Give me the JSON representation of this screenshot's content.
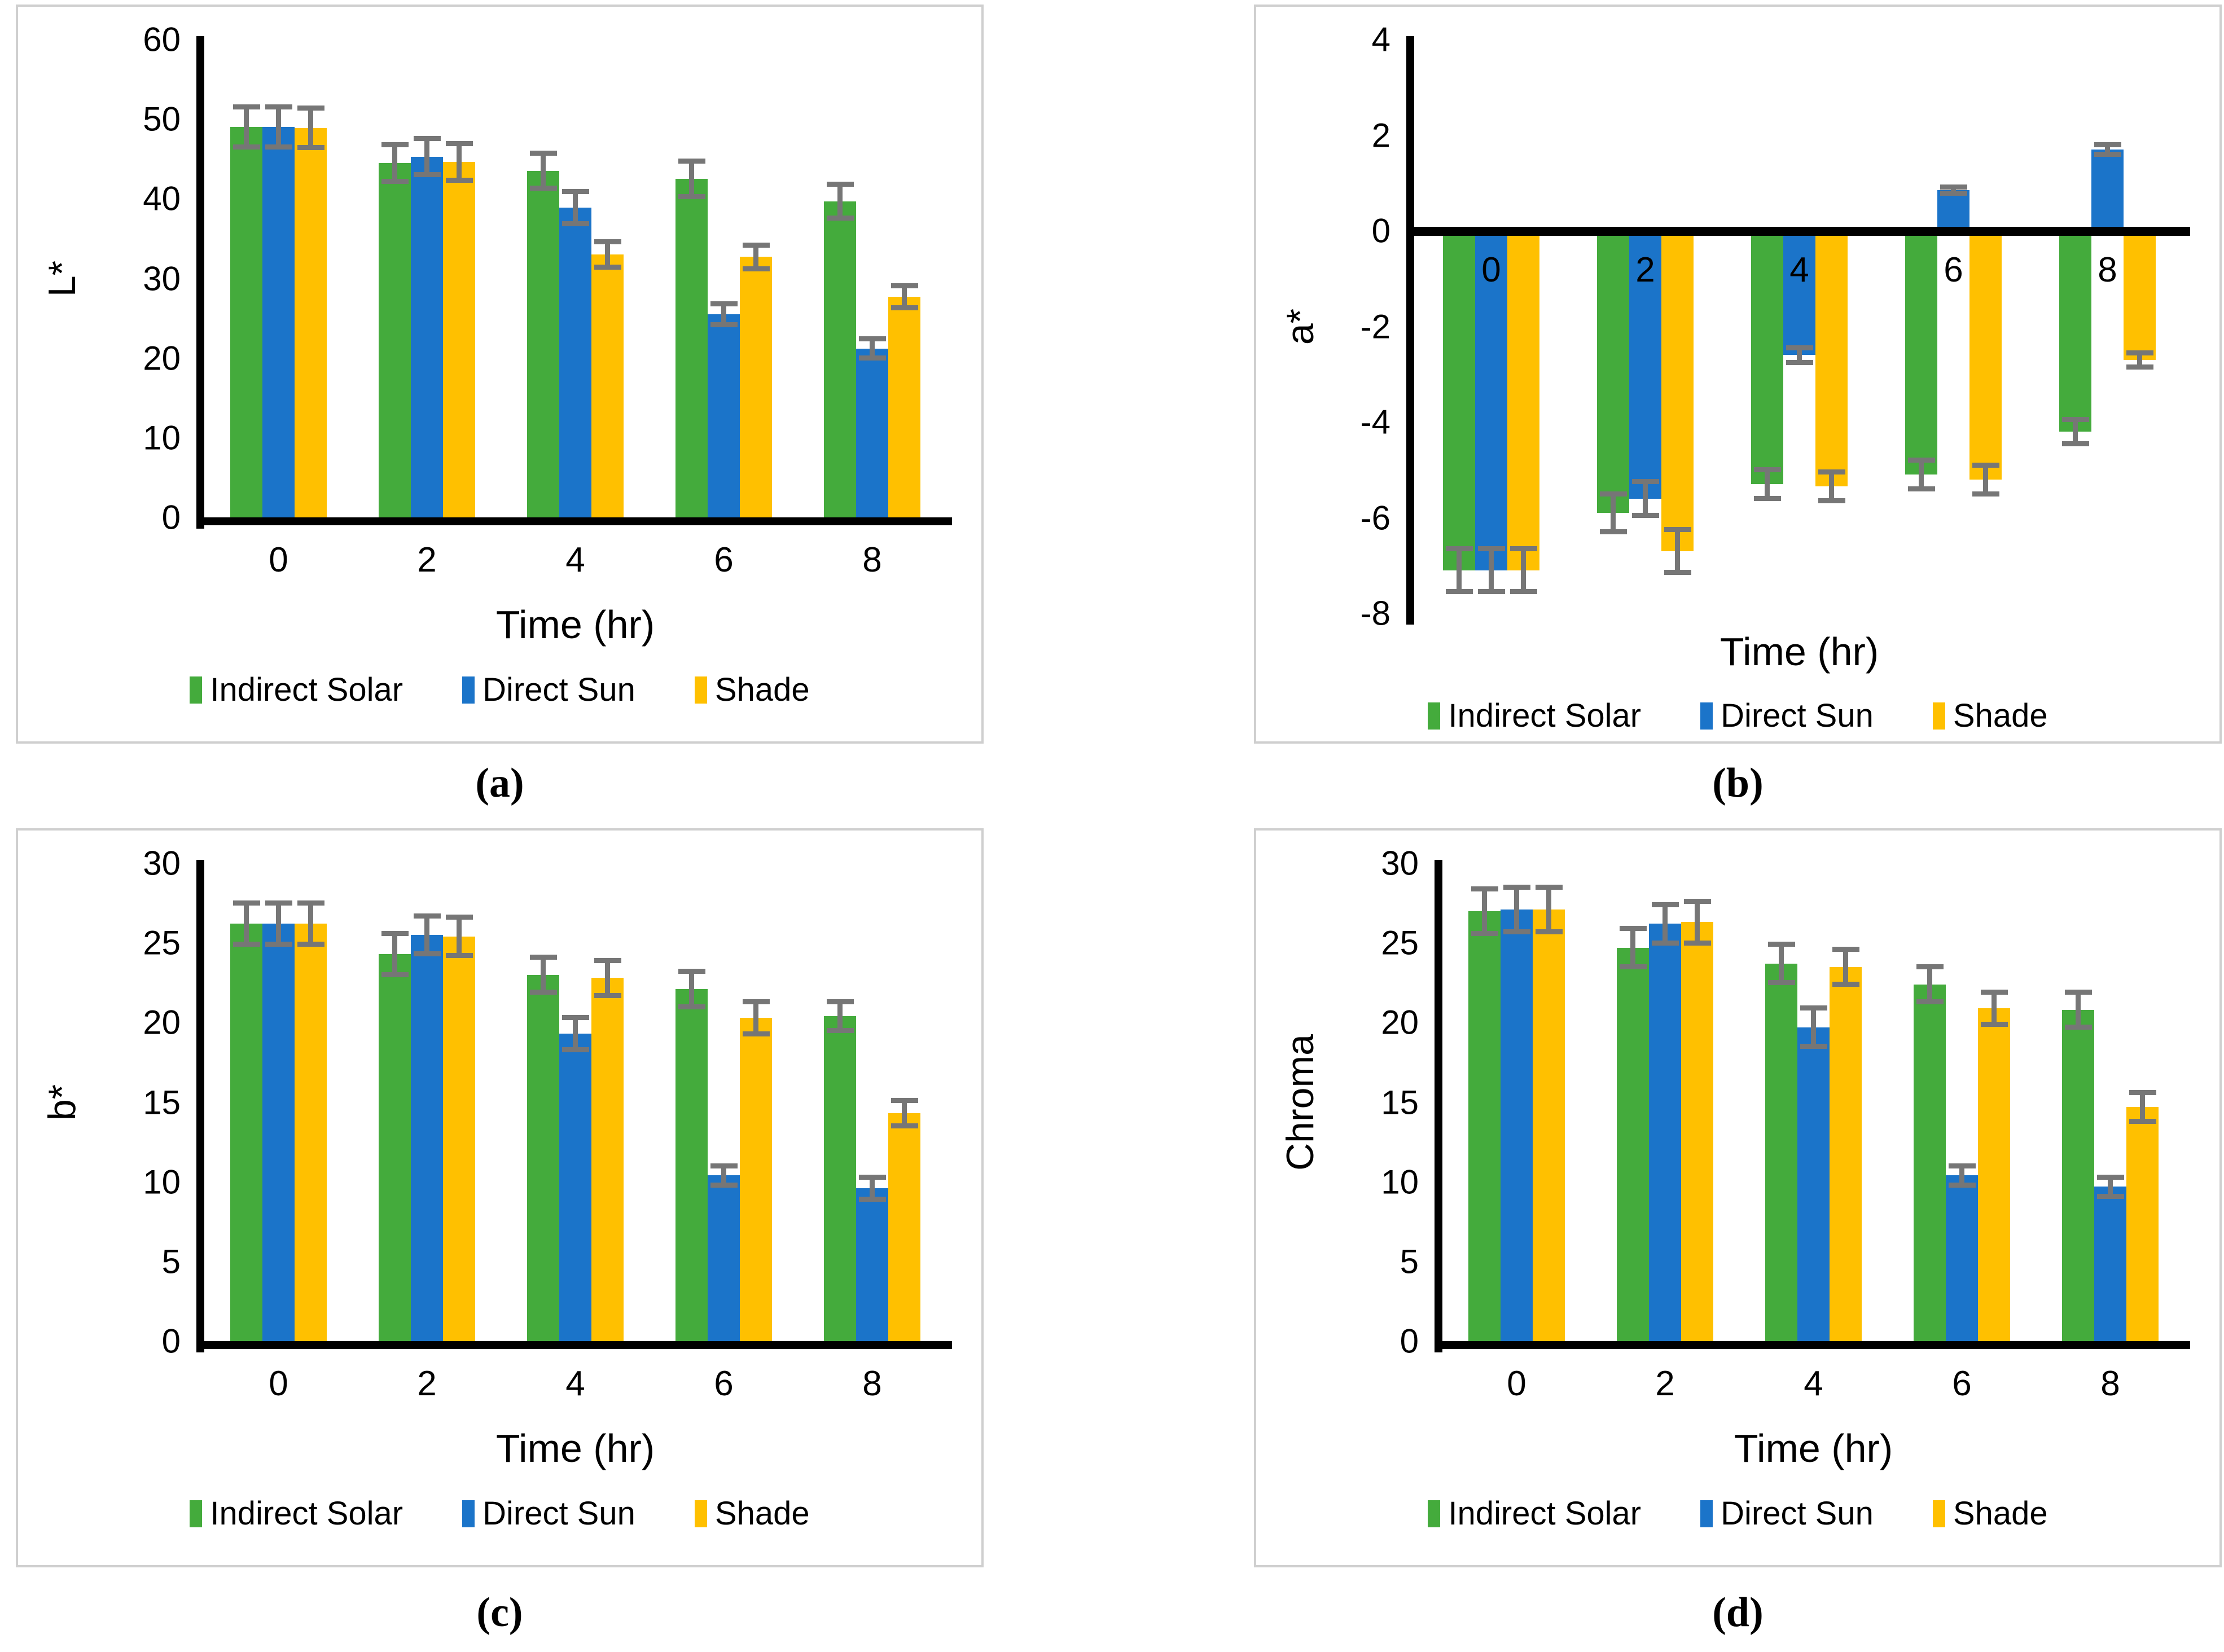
{
  "figure": {
    "description": "Four bar charts of color parameters over drying time",
    "colors": {
      "green": "#44ab3c",
      "blue": "#1b74c9",
      "yellow": "#ffc000",
      "error_gray": "#767676",
      "axis_black": "#000000",
      "panel_border": "#cfcfcf"
    }
  },
  "legend": {
    "items": [
      {
        "label": "Indirect Solar",
        "color": "green"
      },
      {
        "label": "Direct Sun",
        "color": "blue"
      },
      {
        "label": "Shade",
        "color": "yellow"
      }
    ]
  },
  "panels": [
    {
      "label": "(a)",
      "chart_data": {
        "type": "bar",
        "title": "",
        "xlabel": "Time (hr)",
        "ylabel": "L*",
        "categories": [
          "0",
          "2",
          "4",
          "6",
          "8"
        ],
        "ylim": [
          0,
          60
        ],
        "yticks": [
          0,
          10,
          20,
          30,
          40,
          50,
          60
        ],
        "grid": false,
        "legend_position": "bottom",
        "category_labels_inside": false,
        "series": [
          {
            "name": "Indirect Solar",
            "color": "green",
            "values": [
              49.0,
              44.5,
              43.5,
              42.5,
              39.7
            ],
            "errors": [
              2.5,
              2.3,
              2.2,
              2.2,
              2.1
            ]
          },
          {
            "name": "Direct Sun",
            "color": "blue",
            "values": [
              49.0,
              45.3,
              38.9,
              25.5,
              21.2
            ],
            "errors": [
              2.5,
              2.3,
              2.0,
              1.3,
              1.2
            ]
          },
          {
            "name": "Shade",
            "color": "yellow",
            "values": [
              48.9,
              44.6,
              33.0,
              32.7,
              27.7
            ],
            "errors": [
              2.5,
              2.3,
              1.6,
              1.5,
              1.4
            ]
          }
        ]
      }
    },
    {
      "label": "(b)",
      "chart_data": {
        "type": "bar",
        "title": "",
        "xlabel": "Time (hr)",
        "ylabel": "a*",
        "categories": [
          "0",
          "2",
          "4",
          "6",
          "8"
        ],
        "ylim": [
          -8,
          4
        ],
        "yticks": [
          4,
          2,
          0,
          -2,
          -4,
          -6,
          -8
        ],
        "grid": false,
        "legend_position": "bottom",
        "category_labels_inside": true,
        "series": [
          {
            "name": "Indirect Solar",
            "color": "green",
            "values": [
              -7.1,
              -5.9,
              -5.3,
              -5.1,
              -4.2
            ],
            "errors": [
              0.45,
              0.4,
              0.3,
              0.3,
              0.25
            ]
          },
          {
            "name": "Direct Sun",
            "color": "blue",
            "values": [
              -7.1,
              -5.6,
              -2.6,
              0.85,
              1.7
            ],
            "errors": [
              0.45,
              0.35,
              0.15,
              0.07,
              0.1
            ]
          },
          {
            "name": "Shade",
            "color": "yellow",
            "values": [
              -7.1,
              -6.7,
              -5.35,
              -5.2,
              -2.7
            ],
            "errors": [
              0.45,
              0.45,
              0.3,
              0.3,
              0.15
            ]
          }
        ]
      }
    },
    {
      "label": "(c)",
      "chart_data": {
        "type": "bar",
        "title": "",
        "xlabel": "Time (hr)",
        "ylabel": "b*",
        "categories": [
          "0",
          "2",
          "4",
          "6",
          "8"
        ],
        "ylim": [
          0,
          30
        ],
        "yticks": [
          0,
          5,
          10,
          15,
          20,
          25,
          30
        ],
        "grid": false,
        "legend_position": "bottom",
        "category_labels_inside": false,
        "series": [
          {
            "name": "Indirect Solar",
            "color": "green",
            "values": [
              26.2,
              24.3,
              23.0,
              22.1,
              20.4
            ],
            "errors": [
              1.3,
              1.3,
              1.1,
              1.1,
              0.9
            ]
          },
          {
            "name": "Direct Sun",
            "color": "blue",
            "values": [
              26.2,
              25.5,
              19.3,
              10.4,
              9.6
            ],
            "errors": [
              1.3,
              1.2,
              1.0,
              0.6,
              0.7
            ]
          },
          {
            "name": "Shade",
            "color": "yellow",
            "values": [
              26.2,
              25.4,
              22.8,
              20.3,
              14.3
            ],
            "errors": [
              1.3,
              1.2,
              1.1,
              1.0,
              0.8
            ]
          }
        ]
      }
    },
    {
      "label": "(d)",
      "chart_data": {
        "type": "bar",
        "title": "",
        "xlabel": "Time (hr)",
        "ylabel": "Chroma",
        "categories": [
          "0",
          "2",
          "4",
          "6",
          "8"
        ],
        "ylim": [
          0,
          30
        ],
        "yticks": [
          0,
          5,
          10,
          15,
          20,
          25,
          30
        ],
        "grid": false,
        "legend_position": "bottom",
        "category_labels_inside": false,
        "series": [
          {
            "name": "Indirect Solar",
            "color": "green",
            "values": [
              27.0,
              24.7,
              23.7,
              22.4,
              20.8
            ],
            "errors": [
              1.4,
              1.2,
              1.2,
              1.1,
              1.1
            ]
          },
          {
            "name": "Direct Sun",
            "color": "blue",
            "values": [
              27.1,
              26.2,
              19.7,
              10.4,
              9.7
            ],
            "errors": [
              1.4,
              1.2,
              1.2,
              0.6,
              0.6
            ]
          },
          {
            "name": "Shade",
            "color": "yellow",
            "values": [
              27.1,
              26.3,
              23.5,
              20.9,
              14.7
            ],
            "errors": [
              1.4,
              1.3,
              1.1,
              1.0,
              0.9
            ]
          }
        ]
      }
    }
  ]
}
